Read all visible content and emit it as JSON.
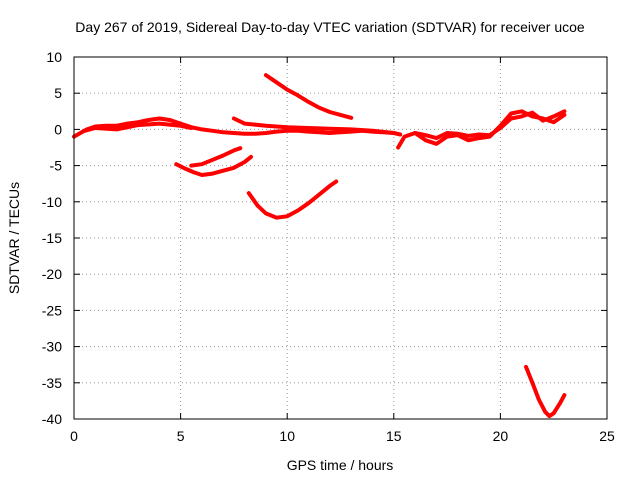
{
  "chart_data": {
    "type": "line",
    "title": "Day 267 of 2019, Sidereal Day-to-day VTEC variation (SDTVAR) for receiver ucoe",
    "xlabel": "GPS time / hours",
    "ylabel": "SDTVAR / TECUs",
    "xlim": [
      0,
      25
    ],
    "ylim": [
      -40,
      10
    ],
    "xticks": [
      0,
      5,
      10,
      15,
      20,
      25
    ],
    "yticks": [
      -40,
      -35,
      -30,
      -25,
      -20,
      -15,
      -10,
      -5,
      0,
      5,
      10
    ],
    "grid": true,
    "series_color": "#ff0000",
    "series": [
      {
        "name": "main-trace-1",
        "x": [
          0.0,
          0.3,
          0.6,
          1.0,
          1.5,
          2.0,
          2.5,
          3.0,
          3.5,
          4.0,
          4.5,
          5.0,
          5.5,
          6.0,
          6.5,
          7.0,
          7.5,
          8.0,
          8.5,
          9.0,
          9.5,
          10.0,
          10.5,
          11.0,
          11.5,
          12.0,
          12.5,
          13.0,
          13.5,
          14.0,
          14.5,
          15.0,
          15.3
        ],
        "y": [
          -1.0,
          -0.5,
          0.0,
          0.4,
          0.5,
          0.5,
          0.8,
          1.0,
          1.3,
          1.5,
          1.3,
          0.8,
          0.3,
          0.0,
          -0.2,
          -0.4,
          -0.5,
          -0.6,
          -0.6,
          -0.5,
          -0.3,
          -0.2,
          -0.2,
          -0.3,
          -0.4,
          -0.5,
          -0.4,
          -0.3,
          -0.2,
          -0.3,
          -0.4,
          -0.5,
          -0.7
        ]
      },
      {
        "name": "main-trace-2",
        "x": [
          0.5,
          1.0,
          2.0,
          3.0,
          4.0,
          5.0,
          5.5
        ],
        "y": [
          -0.2,
          0.2,
          0.0,
          0.6,
          0.8,
          0.5,
          0.2
        ]
      },
      {
        "name": "main-trace-3",
        "x": [
          7.5,
          8.0,
          9.0,
          10.0,
          11.0,
          12.0,
          13.0,
          14.0,
          15.0
        ],
        "y": [
          1.5,
          0.8,
          0.5,
          0.3,
          0.2,
          0.1,
          0.0,
          -0.2,
          -0.5
        ]
      },
      {
        "name": "main-trace-4",
        "x": [
          15.2,
          15.5,
          16.0,
          16.5,
          17.0,
          17.5,
          18.0,
          18.5,
          19.0,
          19.5,
          20.0,
          20.5,
          21.0,
          21.5,
          22.0,
          22.5,
          23.0
        ],
        "y": [
          -2.5,
          -1.0,
          -0.5,
          -1.5,
          -2.0,
          -1.0,
          -0.8,
          -1.5,
          -1.2,
          -1.0,
          0.5,
          2.2,
          2.5,
          1.8,
          1.5,
          1.0,
          2.0
        ]
      },
      {
        "name": "main-trace-5",
        "x": [
          16.0,
          16.5,
          17.0,
          17.5,
          18.0,
          18.5,
          19.0,
          19.5,
          20.0,
          20.5,
          21.0,
          21.5,
          22.0,
          22.5,
          23.0
        ],
        "y": [
          -0.5,
          -0.8,
          -1.2,
          -0.5,
          -0.6,
          -0.9,
          -0.7,
          -0.8,
          0.2,
          1.5,
          1.8,
          2.3,
          1.2,
          1.8,
          2.5
        ]
      },
      {
        "name": "upper-arc",
        "x": [
          9.0,
          9.5,
          10.0,
          10.5,
          11.0,
          11.5,
          12.0,
          12.5,
          13.0
        ],
        "y": [
          7.5,
          6.5,
          5.5,
          4.7,
          3.8,
          3.0,
          2.4,
          2.0,
          1.6
        ]
      },
      {
        "name": "mid-arc",
        "x": [
          4.8,
          5.2,
          5.6,
          6.0,
          6.5,
          7.0,
          7.5,
          8.0,
          8.3
        ],
        "y": [
          -4.8,
          -5.4,
          -5.9,
          -6.3,
          -6.1,
          -5.7,
          -5.3,
          -4.5,
          -3.8
        ]
      },
      {
        "name": "mid-arc-2",
        "x": [
          5.5,
          6.0,
          6.5,
          7.0,
          7.5,
          7.8
        ],
        "y": [
          -5.0,
          -4.8,
          -4.2,
          -3.6,
          -2.9,
          -2.6
        ]
      },
      {
        "name": "lower-arc",
        "x": [
          8.2,
          8.6,
          9.0,
          9.5,
          10.0,
          10.5,
          11.0,
          11.5,
          12.0,
          12.3
        ],
        "y": [
          -8.8,
          -10.5,
          -11.6,
          -12.2,
          -12.0,
          -11.2,
          -10.2,
          -9.0,
          -7.8,
          -7.2
        ]
      },
      {
        "name": "deep-dip",
        "x": [
          21.2,
          21.5,
          21.8,
          22.1,
          22.3,
          22.5,
          22.8,
          23.0
        ],
        "y": [
          -32.8,
          -35.0,
          -37.3,
          -39.0,
          -39.6,
          -39.2,
          -37.8,
          -36.7
        ]
      }
    ]
  }
}
